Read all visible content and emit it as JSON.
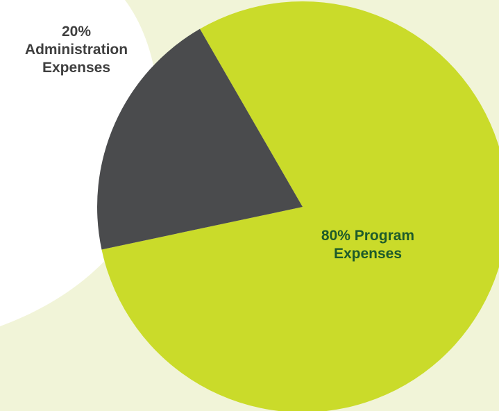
{
  "colors": {
    "background_blob": "#f1f4d8",
    "program": "#cadb2a",
    "administration": "#4a4b4d",
    "program_label": "#1d5b2a",
    "administration_label": "#3f3f3f"
  },
  "chart_data": {
    "type": "pie",
    "title": "",
    "slices": [
      {
        "name": "Program Expenses",
        "value": 80,
        "percent_text": "80%",
        "label_line1": "80% Program",
        "label_line2": "Expenses",
        "color": "#cadb2a"
      },
      {
        "name": "Administration Expenses",
        "value": 20,
        "percent_text": "20%",
        "label_line1": "20%",
        "label_line2": "Administration",
        "label_line3": "Expenses",
        "color": "#4a4b4d"
      }
    ],
    "legend": "none"
  }
}
